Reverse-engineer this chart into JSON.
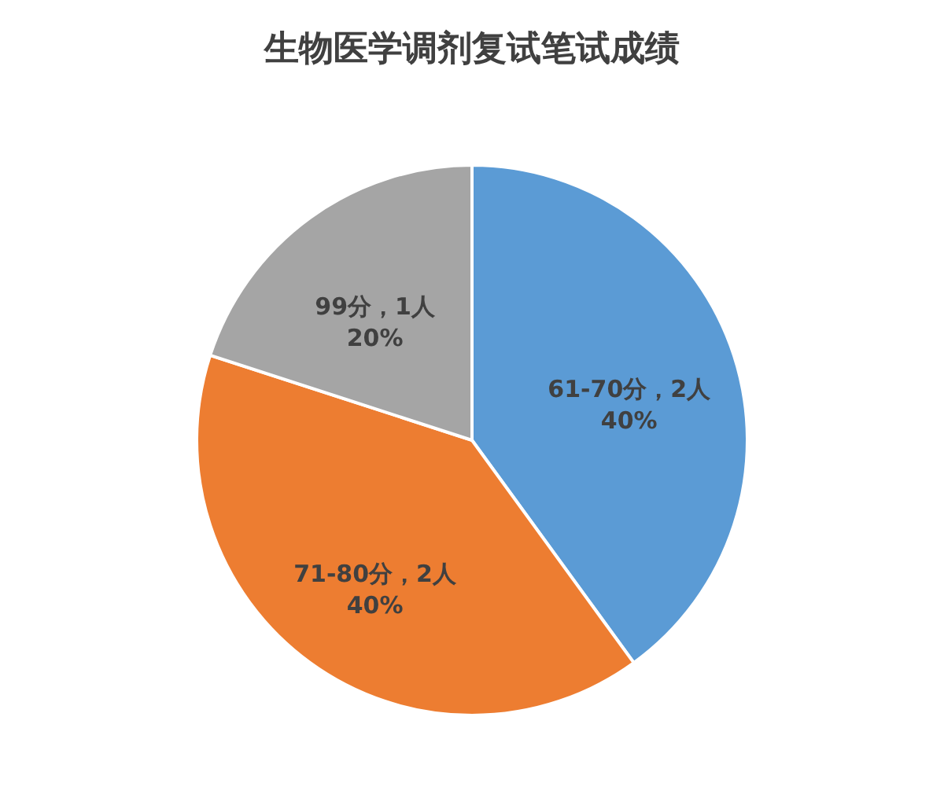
{
  "chart_data": {
    "type": "pie",
    "title": "生物医学调剂复试笔试成绩",
    "categories": [
      "61-70分",
      "71-80分",
      "99分"
    ],
    "values": [
      2,
      2,
      1
    ],
    "colors": [
      "#5b9bd5",
      "#ed7d31",
      "#a5a5a5"
    ],
    "value_labels": [
      "，2人\n40%",
      "，2人\n40%",
      "，1人\n20%"
    ],
    "legend": false
  }
}
